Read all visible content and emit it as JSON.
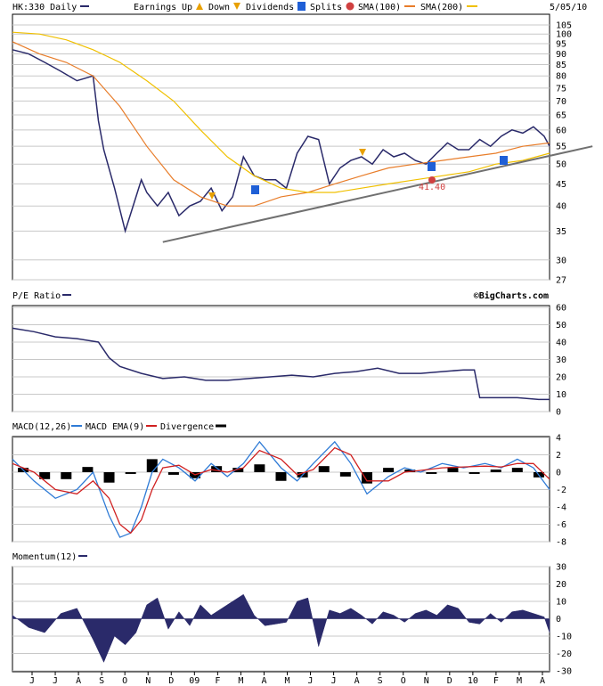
{
  "chart_data": [
    {
      "type": "line",
      "panel": "price",
      "title": "HK:330 Daily",
      "date_label": "5/05/10",
      "legend": [
        {
          "label": "Earnings",
          "glyph": ""
        },
        {
          "label": "Up",
          "glyph": "triangle-up",
          "color": "#e8a000"
        },
        {
          "label": "Down",
          "glyph": "triangle-down",
          "color": "#e8a000"
        },
        {
          "label": "Dividends",
          "glyph": "D",
          "color": "#1f5fd6"
        },
        {
          "label": "Splits",
          "glyph": "S",
          "color": "#d04040"
        },
        {
          "label": "SMA(100)",
          "glyph": "line",
          "color": "#e87d2a"
        },
        {
          "label": "SMA(200)",
          "glyph": "line",
          "color": "#f0c000"
        }
      ],
      "y_ticks": [
        105,
        100,
        95,
        90,
        85,
        80,
        75,
        70,
        65,
        60,
        55,
        50,
        45,
        40,
        35,
        30,
        27
      ],
      "y_scale": "log",
      "ylim": [
        27,
        107
      ],
      "annotation": "41.40",
      "series": [
        {
          "name": "Price",
          "color": "#2a2a6a",
          "x": [
            0,
            0.03,
            0.06,
            0.09,
            0.12,
            0.15,
            0.16,
            0.17,
            0.19,
            0.21,
            0.23,
            0.24,
            0.25,
            0.27,
            0.29,
            0.31,
            0.33,
            0.35,
            0.37,
            0.39,
            0.41,
            0.43,
            0.45,
            0.47,
            0.49,
            0.51,
            0.53,
            0.55,
            0.57,
            0.59,
            0.61,
            0.63,
            0.65,
            0.67,
            0.69,
            0.71,
            0.73,
            0.75,
            0.77,
            0.79,
            0.81,
            0.83,
            0.85,
            0.87,
            0.89,
            0.91,
            0.93,
            0.95,
            0.97,
            0.99,
            1
          ],
          "values": [
            92,
            90,
            86,
            82,
            78,
            80,
            63,
            54,
            44,
            35,
            42,
            46,
            43,
            40,
            43,
            38,
            40,
            41,
            44,
            39,
            42,
            52,
            47,
            46,
            46,
            44,
            53,
            58,
            57,
            45,
            49,
            51,
            52,
            50,
            54,
            52,
            53,
            51,
            50,
            53,
            56,
            54,
            54,
            57,
            55,
            58,
            60,
            59,
            61,
            58,
            55
          ]
        },
        {
          "name": "SMA(100)",
          "color": "#e87d2a",
          "x": [
            0,
            0.05,
            0.1,
            0.15,
            0.2,
            0.25,
            0.3,
            0.35,
            0.4,
            0.45,
            0.5,
            0.55,
            0.6,
            0.65,
            0.7,
            0.75,
            0.8,
            0.85,
            0.9,
            0.95,
            1
          ],
          "values": [
            96,
            90,
            86,
            80,
            68,
            55,
            46,
            42,
            40,
            40,
            42,
            43,
            45,
            47,
            49,
            50,
            51,
            52,
            53,
            55,
            56
          ]
        },
        {
          "name": "SMA(200)",
          "color": "#f0c000",
          "x": [
            0,
            0.05,
            0.1,
            0.15,
            0.2,
            0.25,
            0.3,
            0.35,
            0.4,
            0.45,
            0.5,
            0.55,
            0.6,
            0.65,
            0.7,
            0.75,
            0.8,
            0.85,
            0.9,
            0.95,
            1
          ],
          "values": [
            101,
            100,
            97,
            92,
            86,
            78,
            70,
            60,
            52,
            47,
            44,
            43,
            43,
            44,
            45,
            46,
            47,
            48,
            50,
            51,
            53
          ]
        },
        {
          "name": "Trendline",
          "color": "#707070",
          "x": [
            0.28,
            1.08
          ],
          "values": [
            33,
            55
          ]
        }
      ]
    },
    {
      "type": "line",
      "panel": "pe",
      "title": "P/E Ratio",
      "credit": "©BigCharts.com",
      "y_ticks": [
        60,
        50,
        40,
        30,
        20,
        10,
        0
      ],
      "ylim": [
        0,
        60
      ],
      "series": [
        {
          "name": "P/E Ratio",
          "color": "#2a2a6a",
          "x": [
            0,
            0.04,
            0.08,
            0.12,
            0.16,
            0.18,
            0.2,
            0.24,
            0.28,
            0.32,
            0.36,
            0.4,
            0.44,
            0.48,
            0.52,
            0.56,
            0.6,
            0.64,
            0.68,
            0.72,
            0.76,
            0.8,
            0.84,
            0.86,
            0.87,
            0.9,
            0.94,
            0.98,
            1
          ],
          "values": [
            48,
            46,
            43,
            42,
            40,
            31,
            26,
            22,
            19,
            20,
            18,
            18,
            19,
            20,
            21,
            20,
            22,
            23,
            25,
            22,
            22,
            23,
            24,
            24,
            8,
            8,
            8,
            7,
            7
          ]
        }
      ]
    },
    {
      "type": "line",
      "panel": "macd",
      "title": "MACD(12,26)",
      "legend": [
        {
          "label": "MACD EMA(9)",
          "color": "#2f7bd6"
        },
        {
          "label": "Divergence",
          "color": "#d02020"
        }
      ],
      "y_ticks": [
        4,
        2,
        0,
        -2,
        -4,
        -6,
        -8
      ],
      "ylim": [
        -8,
        4
      ],
      "series": [
        {
          "name": "MACD",
          "color": "#2f7bd6",
          "x": [
            0,
            0.04,
            0.08,
            0.12,
            0.15,
            0.18,
            0.2,
            0.22,
            0.24,
            0.26,
            0.28,
            0.31,
            0.34,
            0.37,
            0.4,
            0.43,
            0.46,
            0.5,
            0.53,
            0.56,
            0.6,
            0.63,
            0.66,
            0.7,
            0.73,
            0.76,
            0.8,
            0.84,
            0.88,
            0.91,
            0.94,
            0.97,
            1
          ],
          "values": [
            1.5,
            -1,
            -3,
            -2,
            0,
            -5,
            -7.5,
            -7,
            -4,
            0,
            1.5,
            0.5,
            -1,
            1,
            -0.5,
            1,
            3.5,
            0.5,
            -1,
            1,
            3.5,
            1,
            -2.5,
            -0.5,
            0.5,
            0,
            1,
            0.5,
            1,
            0.5,
            1.5,
            0.5,
            -2
          ]
        },
        {
          "name": "MACD EMA(9)",
          "color": "#d02020",
          "x": [
            0,
            0.04,
            0.08,
            0.12,
            0.15,
            0.18,
            0.2,
            0.22,
            0.24,
            0.26,
            0.28,
            0.31,
            0.34,
            0.37,
            0.4,
            0.43,
            0.46,
            0.5,
            0.53,
            0.56,
            0.6,
            0.63,
            0.66,
            0.7,
            0.73,
            0.76,
            0.8,
            0.84,
            0.88,
            0.91,
            0.94,
            0.97,
            1
          ],
          "values": [
            1,
            0,
            -2,
            -2.5,
            -1,
            -3,
            -6,
            -7,
            -5.5,
            -2,
            0.5,
            0.8,
            -0.3,
            0.3,
            0,
            0.5,
            2.5,
            1.5,
            -0.3,
            0.3,
            2.8,
            2,
            -1,
            -1,
            0,
            0.2,
            0.5,
            0.6,
            0.7,
            0.6,
            1,
            1,
            -0.8
          ]
        }
      ],
      "divergence": {
        "name": "Divergence",
        "color": "#000000",
        "x": [
          0.02,
          0.06,
          0.1,
          0.14,
          0.18,
          0.22,
          0.26,
          0.3,
          0.34,
          0.38,
          0.42,
          0.46,
          0.5,
          0.54,
          0.58,
          0.62,
          0.66,
          0.7,
          0.74,
          0.78,
          0.82,
          0.86,
          0.9,
          0.94,
          0.98
        ],
        "values": [
          0.5,
          -0.8,
          -0.8,
          0.6,
          -1.2,
          -0.2,
          1.5,
          -0.3,
          -0.7,
          0.7,
          0.5,
          0.9,
          -1,
          -0.6,
          0.7,
          -0.5,
          -1.3,
          0.5,
          0.3,
          -0.2,
          0.5,
          -0.2,
          0.3,
          0.5,
          -0.6
        ]
      }
    },
    {
      "type": "area",
      "panel": "momentum",
      "title": "Momentum(12)",
      "y_ticks": [
        30,
        20,
        10,
        0,
        -10,
        -20,
        -30
      ],
      "ylim": [
        -30,
        30
      ],
      "x_ticks": [
        "J",
        "J",
        "A",
        "S",
        "O",
        "N",
        "D",
        "09",
        "F",
        "M",
        "A",
        "M",
        "J",
        "J",
        "A",
        "S",
        "O",
        "N",
        "D",
        "10",
        "F",
        "M",
        "A"
      ],
      "series": [
        {
          "name": "Momentum",
          "color": "#2a2a6a",
          "x": [
            0,
            0.03,
            0.06,
            0.09,
            0.12,
            0.15,
            0.17,
            0.19,
            0.21,
            0.23,
            0.25,
            0.27,
            0.29,
            0.31,
            0.33,
            0.35,
            0.37,
            0.39,
            0.41,
            0.43,
            0.45,
            0.47,
            0.49,
            0.51,
            0.53,
            0.55,
            0.57,
            0.59,
            0.61,
            0.63,
            0.65,
            0.67,
            0.69,
            0.71,
            0.73,
            0.75,
            0.77,
            0.79,
            0.81,
            0.83,
            0.85,
            0.87,
            0.89,
            0.91,
            0.93,
            0.95,
            0.97,
            0.99,
            1
          ],
          "values": [
            2,
            -5,
            -8,
            3,
            6,
            -12,
            -25,
            -10,
            -15,
            -8,
            8,
            12,
            -6,
            4,
            -4,
            8,
            2,
            6,
            10,
            14,
            2,
            -4,
            -3,
            -2,
            10,
            12,
            -16,
            5,
            3,
            6,
            2,
            -3,
            4,
            2,
            -2,
            3,
            5,
            2,
            8,
            6,
            -2,
            -3,
            3,
            -2,
            4,
            5,
            3,
            1,
            -8
          ]
        }
      ]
    }
  ]
}
